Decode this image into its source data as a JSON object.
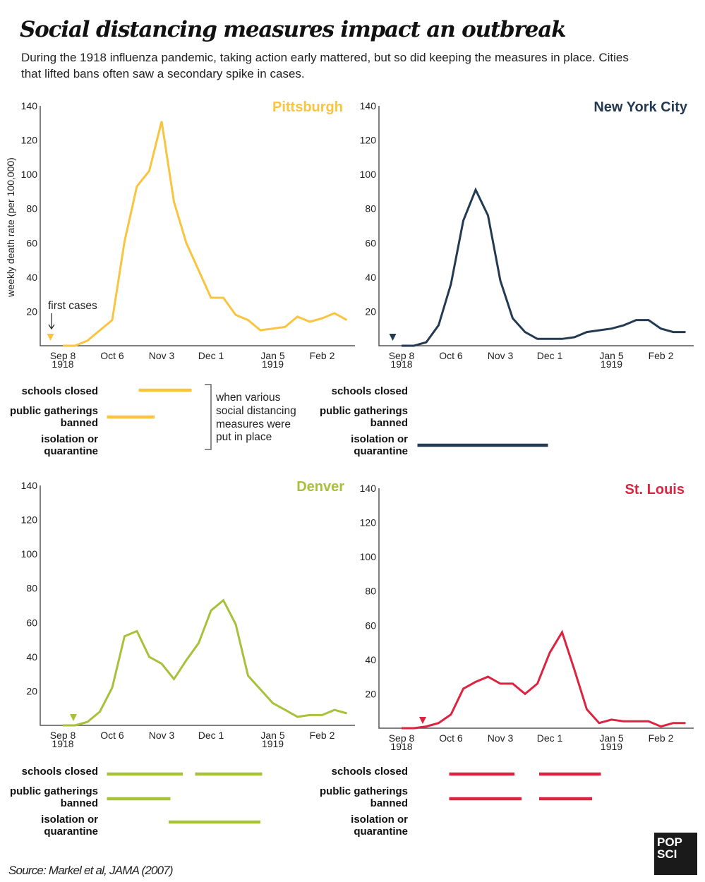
{
  "header": {
    "title": "Social distancing measures impact an outbreak",
    "subtitle_line1": "During the 1918 influenza pandemic, taking action early mattered, but so did keeping the measures in place. Cities",
    "subtitle_line2": "that lifted bans often saw a secondary spike in cases."
  },
  "ylabel": "weekly death rate (per 100,000)",
  "annotation_first_cases": "first cases",
  "measures_labels": {
    "schools": "schools closed",
    "gatherings_1": "public gatherings",
    "gatherings_2": "banned",
    "isolation_1": "isolation or",
    "isolation_2": "quarantine"
  },
  "bracket_note": [
    "when various",
    "social distancing",
    "measures were",
    "put in place"
  ],
  "source": "Source: Markel et al, JAMA (2007)",
  "logo": {
    "line1": "POP",
    "line2": "SCI"
  },
  "chart_data": {
    "type": "line",
    "ylabel": "weekly death rate (per 100,000)",
    "ylim": [
      0,
      140
    ],
    "yticks": [
      20,
      40,
      60,
      80,
      100,
      120,
      140
    ],
    "xticks": [
      {
        "date": "1918-09-08",
        "label": "Sep 8",
        "year": "1918"
      },
      {
        "date": "1918-10-06",
        "label": "Oct 6",
        "year": ""
      },
      {
        "date": "1918-11-03",
        "label": "Nov 3",
        "year": ""
      },
      {
        "date": "1918-12-01",
        "label": "Dec 1",
        "year": ""
      },
      {
        "date": "1919-01-05",
        "label": "Jan 5",
        "year": "1919"
      },
      {
        "date": "1919-02-02",
        "label": "Feb 2",
        "year": ""
      }
    ],
    "x": [
      "1918-09-08",
      "1918-09-15",
      "1918-09-22",
      "1918-09-29",
      "1918-10-06",
      "1918-10-13",
      "1918-10-20",
      "1918-10-27",
      "1918-11-03",
      "1918-11-10",
      "1918-11-17",
      "1918-11-24",
      "1918-12-01",
      "1918-12-08",
      "1918-12-15",
      "1918-12-22",
      "1918-12-29",
      "1919-01-05",
      "1919-01-12",
      "1919-01-19",
      "1919-01-26",
      "1919-02-02",
      "1919-02-09",
      "1919-02-16"
    ],
    "grid": false,
    "series": [
      {
        "name": "Pittsburgh",
        "color": "#F9C440",
        "values": [
          0,
          0,
          3,
          9,
          15,
          61,
          93,
          102,
          131,
          84,
          60,
          44,
          28,
          28,
          18,
          15,
          9,
          10,
          11,
          17,
          14,
          16,
          19,
          15
        ],
        "first_cases": "1918-09-01",
        "measures": {
          "schools": [
            [
              "1918-10-21",
              "1918-11-20"
            ]
          ],
          "gatherings": [
            [
              "1918-10-03",
              "1918-10-30"
            ]
          ],
          "isolation": []
        }
      },
      {
        "name": "New York City",
        "color": "#233A52",
        "values": [
          0,
          0,
          2,
          12,
          36,
          73,
          91,
          76,
          38,
          16,
          8,
          4,
          4,
          4,
          5,
          8,
          9,
          10,
          12,
          15,
          15,
          10,
          8,
          8
        ],
        "first_cases": "1918-09-03",
        "measures": {
          "schools": [],
          "gatherings": [],
          "isolation": [
            [
              "1918-09-17",
              "1918-11-30"
            ]
          ]
        }
      },
      {
        "name": "Denver",
        "color": "#A7C13A",
        "values": [
          0,
          0,
          2,
          8,
          22,
          52,
          55,
          40,
          36,
          27,
          38,
          48,
          67,
          73,
          59,
          29,
          21,
          13,
          9,
          5,
          6,
          6,
          9,
          7
        ],
        "first_cases": "1918-09-14",
        "measures": {
          "schools": [
            [
              "1918-10-03",
              "1918-11-15"
            ],
            [
              "1918-11-22",
              "1918-12-30"
            ]
          ],
          "gatherings": [
            [
              "1918-10-03",
              "1918-11-08"
            ]
          ],
          "isolation": [
            [
              "1918-11-07",
              "1918-12-29"
            ]
          ]
        }
      },
      {
        "name": "St. Louis",
        "color": "#DC2340",
        "values": [
          0,
          0,
          1,
          3,
          8,
          23,
          27,
          30,
          26,
          26,
          20,
          26,
          44,
          56,
          34,
          11,
          3,
          5,
          4,
          4,
          4,
          1,
          3,
          3
        ],
        "first_cases": "1918-09-20",
        "measures": {
          "schools": [
            [
              "1918-10-05",
              "1918-11-11"
            ],
            [
              "1918-11-25",
              "1918-12-30"
            ]
          ],
          "gatherings": [
            [
              "1918-10-05",
              "1918-11-15"
            ],
            [
              "1918-11-25",
              "1918-12-25"
            ]
          ],
          "isolation": []
        }
      }
    ]
  }
}
